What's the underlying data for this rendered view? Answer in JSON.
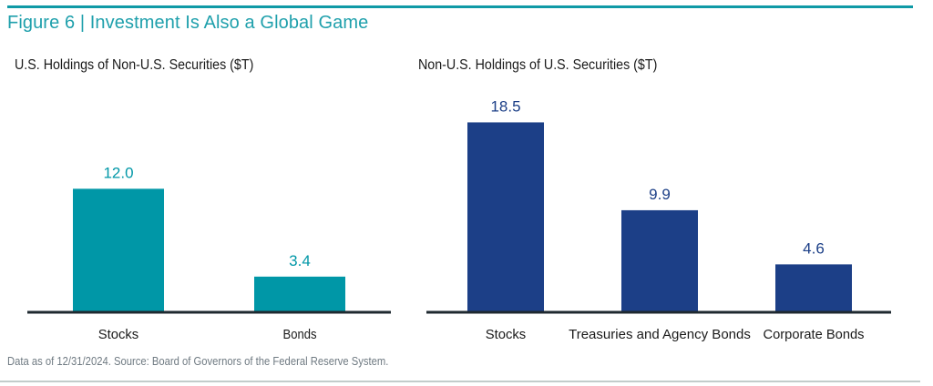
{
  "figure": {
    "title": "Figure 6 | Investment Is Also a Global Game",
    "footer": "Data as of 12/31/2024. Source: Board of Governors of the Federal Reserve System."
  },
  "colors": {
    "accent": "#0f9aa6",
    "left_bars": "#0097a7",
    "right_bars": "#1c3f87",
    "axis": "#1f2a30"
  },
  "chart_data": [
    {
      "type": "bar",
      "title": "U.S. Holdings of Non-U.S. Securities ($T)",
      "categories": [
        "Stocks",
        "Bonds"
      ],
      "values": [
        12.0,
        3.4
      ],
      "value_labels": [
        "12.0",
        "3.4"
      ],
      "xlabel": "",
      "ylabel": "",
      "ylim": [
        0,
        20
      ],
      "grid": false,
      "color": "#0097a7"
    },
    {
      "type": "bar",
      "title": "Non-U.S. Holdings of U.S. Securities ($T)",
      "categories": [
        "Stocks",
        "Treasuries and Agency Bonds",
        "Corporate Bonds"
      ],
      "values": [
        18.5,
        9.9,
        4.6
      ],
      "value_labels": [
        "18.5",
        "9.9",
        "4.6"
      ],
      "xlabel": "",
      "ylabel": "",
      "ylim": [
        0,
        20
      ],
      "grid": false,
      "color": "#1c3f87"
    }
  ]
}
